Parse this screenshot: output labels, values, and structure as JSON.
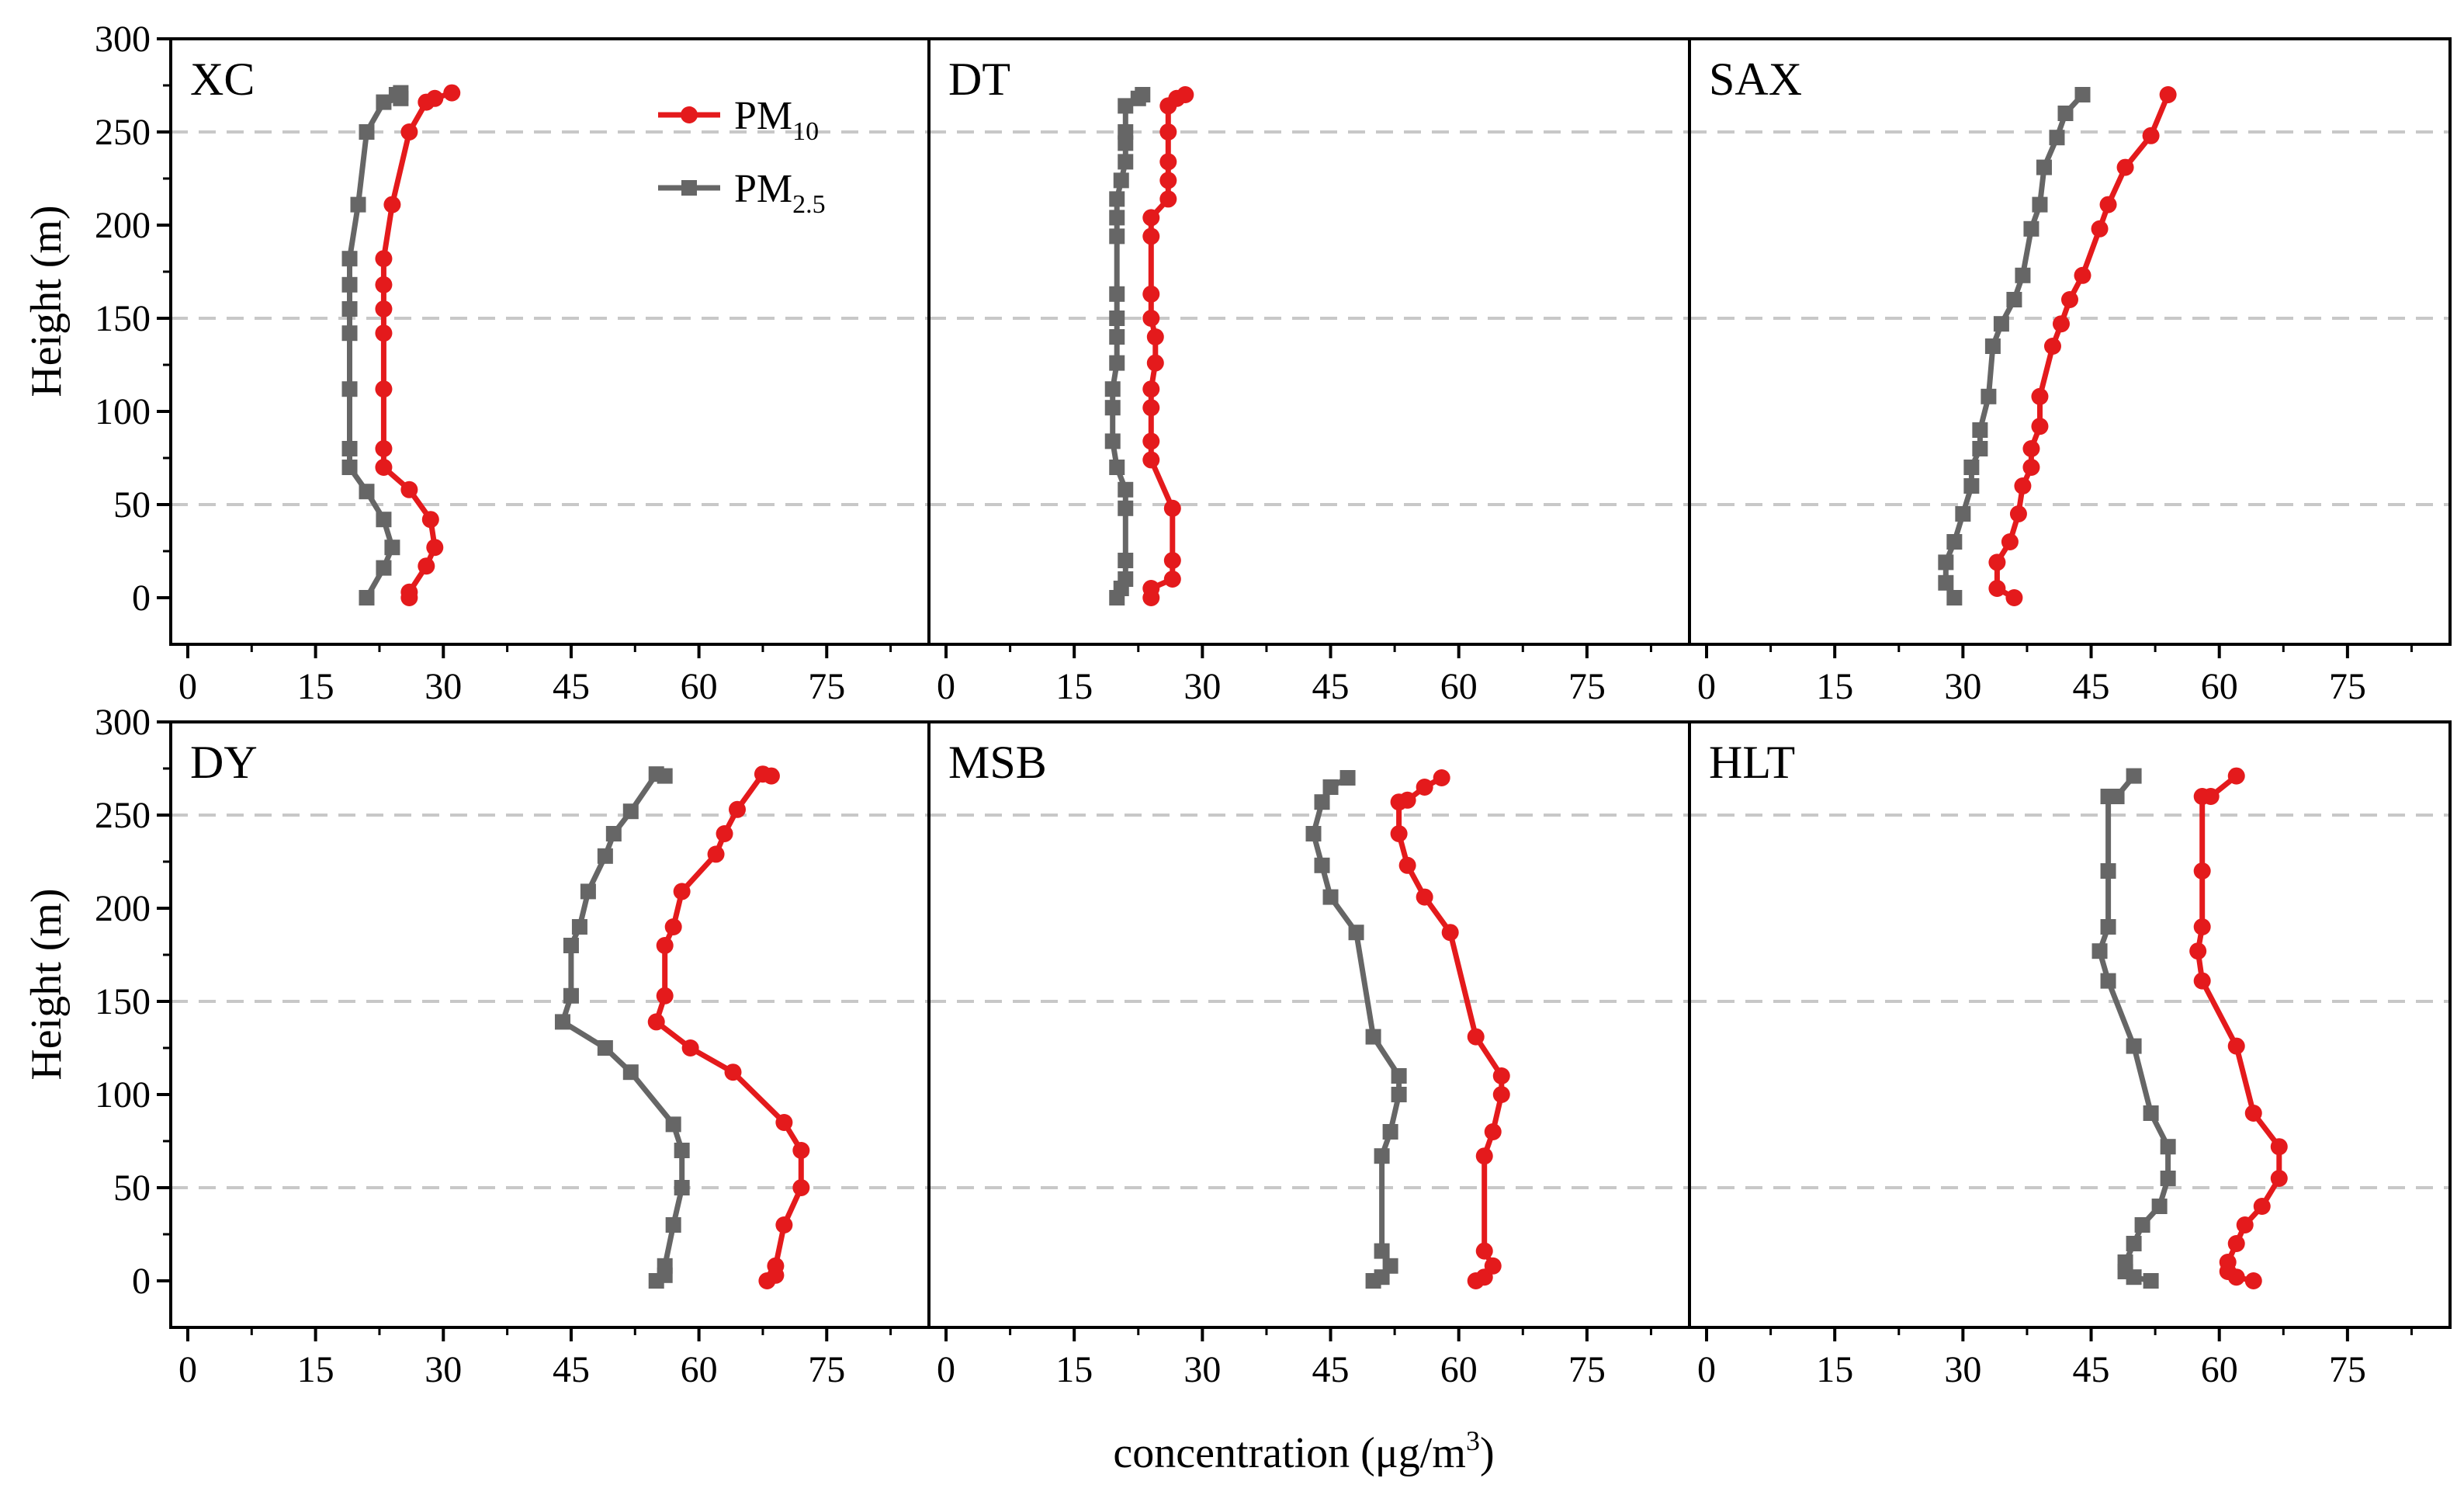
{
  "chart_data": {
    "type": "line",
    "layout": "2x3 small multiples, shared y axis per row",
    "xlabel": "concentration (μg/m³)",
    "xlabel_base": "concentration (μg/m",
    "xlabel_sup": "3",
    "xlabel_tail": ")",
    "ylabel": "Height (m)",
    "xlim": [
      -2,
      87
    ],
    "ylim": [
      -25,
      300
    ],
    "xticks": [
      "0",
      "15",
      "30",
      "45",
      "60",
      "75"
    ],
    "yticks": [
      "0",
      "50",
      "100",
      "150",
      "200",
      "250",
      "300"
    ],
    "horizontal_reference_lines": [
      50,
      150,
      250
    ],
    "grid": "dashed gray horizontal lines at 50, 150, 250",
    "legend": {
      "placement": "top inside first panel",
      "entries": [
        {
          "label": "PM10",
          "base": "PM",
          "sub": "10",
          "color": "#e41a1c",
          "marker": "circle"
        },
        {
          "label": "PM2.5",
          "base": "PM",
          "sub": "2.5",
          "color": "#666666",
          "marker": "square"
        }
      ]
    },
    "panels": [
      {
        "name": "XC",
        "series": [
          {
            "name": "PM10",
            "color": "#e41a1c",
            "marker": "circle",
            "x": [
              26,
              26,
              28,
              29,
              28.5,
              26,
              23,
              23,
              23,
              23,
              23,
              23,
              23,
              24,
              26,
              28,
              29,
              31
            ],
            "y": [
              0,
              3,
              17,
              27,
              42,
              58,
              70,
              80,
              112,
              142,
              155,
              168,
              182,
              211,
              250,
              266,
              268,
              271
            ]
          },
          {
            "name": "PM2.5",
            "color": "#666666",
            "marker": "square",
            "x": [
              21,
              23,
              24,
              23,
              21,
              19,
              19,
              19,
              19,
              19,
              19,
              19,
              20,
              21,
              23,
              25,
              24.5,
              25
            ],
            "y": [
              0,
              16,
              27,
              42,
              57,
              70,
              80,
              112,
              142,
              155,
              168,
              182,
              211,
              250,
              266,
              268,
              270,
              271
            ]
          }
        ]
      },
      {
        "name": "DT",
        "series": [
          {
            "name": "PM10",
            "color": "#e41a1c",
            "marker": "circle",
            "x": [
              24,
              24,
              26.5,
              26.5,
              26.5,
              24,
              24,
              24,
              24,
              24.5,
              24.5,
              24,
              24,
              24,
              24,
              26,
              26,
              26,
              26,
              26,
              27,
              28
            ],
            "y": [
              0,
              5,
              10,
              20,
              48,
              74,
              84,
              102,
              112,
              126,
              140,
              150,
              163,
              194,
              204,
              214,
              224,
              234,
              250,
              264,
              268,
              270
            ]
          },
          {
            "name": "PM2.5",
            "color": "#666666",
            "marker": "square",
            "x": [
              20,
              20.5,
              21,
              21,
              21,
              21,
              20,
              19.5,
              19.5,
              19.5,
              20,
              20,
              20,
              20,
              20,
              20,
              20,
              20.5,
              21,
              21,
              21,
              21,
              22.5,
              23
            ],
            "y": [
              0,
              5,
              10,
              20,
              48,
              58,
              70,
              84,
              102,
              112,
              126,
              140,
              150,
              163,
              194,
              204,
              214,
              224,
              234,
              244,
              250,
              264,
              268,
              270
            ]
          }
        ]
      },
      {
        "name": "SAX",
        "series": [
          {
            "name": "PM10",
            "color": "#e41a1c",
            "marker": "circle",
            "x": [
              36,
              34,
              34,
              35.5,
              36.5,
              37,
              38,
              38,
              39,
              39,
              40.5,
              41.5,
              42.5,
              44,
              46,
              47,
              49,
              52,
              54
            ],
            "y": [
              0,
              5,
              19,
              30,
              45,
              60,
              70,
              80,
              92,
              108,
              135,
              147,
              160,
              173,
              198,
              211,
              231,
              248,
              270
            ]
          },
          {
            "name": "PM2.5",
            "color": "#666666",
            "marker": "square",
            "x": [
              29,
              28,
              28,
              29,
              30,
              31,
              31,
              32,
              32,
              33,
              33.5,
              34.5,
              36,
              37,
              38,
              39,
              39.5,
              41,
              42,
              44
            ],
            "y": [
              0,
              8,
              19,
              30,
              45,
              60,
              70,
              80,
              90,
              108,
              135,
              147,
              160,
              173,
              198,
              211,
              231,
              247,
              260,
              270
            ]
          }
        ]
      },
      {
        "name": "DY",
        "series": [
          {
            "name": "PM10",
            "color": "#e41a1c",
            "marker": "circle",
            "x": [
              68,
              69,
              69,
              70,
              72,
              72,
              70,
              64,
              59,
              55,
              56,
              56,
              57,
              58,
              62,
              63,
              64.5,
              67.5,
              68.5
            ],
            "y": [
              0,
              3,
              8,
              30,
              50,
              70,
              85,
              112,
              125,
              139,
              153,
              180,
              190,
              209,
              229,
              240,
              253,
              272,
              271
            ]
          },
          {
            "name": "PM2.5",
            "color": "#666666",
            "marker": "square",
            "x": [
              55,
              56,
              56,
              57,
              58,
              58,
              57,
              52,
              49,
              44,
              45,
              45,
              46,
              47,
              49,
              50,
              52,
              55,
              56
            ],
            "y": [
              0,
              3,
              8,
              30,
              50,
              70,
              84,
              112,
              125,
              139,
              153,
              180,
              190,
              209,
              228,
              240,
              252,
              272,
              271
            ]
          }
        ]
      },
      {
        "name": "MSB",
        "series": [
          {
            "name": "PM10",
            "color": "#e41a1c",
            "marker": "circle",
            "x": [
              62,
              63,
              64,
              63,
              63,
              64,
              65,
              65,
              62,
              59,
              56,
              54,
              53,
              53,
              54,
              56,
              58
            ],
            "y": [
              0,
              2,
              8,
              16,
              67,
              80,
              100,
              110,
              131,
              187,
              206,
              223,
              240,
              257,
              258,
              265,
              270
            ]
          },
          {
            "name": "PM2.5",
            "color": "#666666",
            "marker": "square",
            "x": [
              50,
              51,
              52,
              51,
              51,
              52,
              53,
              53,
              50,
              48,
              45,
              44,
              43,
              44,
              45,
              47
            ],
            "y": [
              0,
              2,
              8,
              16,
              67,
              80,
              100,
              110,
              131,
              187,
              206,
              223,
              240,
              257,
              265,
              270
            ]
          }
        ]
      },
      {
        "name": "HLT",
        "series": [
          {
            "name": "PM10",
            "color": "#e41a1c",
            "marker": "circle",
            "x": [
              64,
              62,
              61,
              61,
              62,
              63,
              65,
              67,
              67,
              64,
              62,
              58,
              57.5,
              58,
              58,
              58,
              59,
              62
            ],
            "y": [
              0,
              2,
              5,
              10,
              20,
              30,
              40,
              55,
              72,
              90,
              126,
              161,
              177,
              190,
              220,
              260,
              260,
              271
            ]
          },
          {
            "name": "PM2.5",
            "color": "#666666",
            "marker": "square",
            "x": [
              52,
              50,
              49,
              49,
              50,
              51,
              53,
              54,
              54,
              52,
              50,
              47,
              46,
              47,
              47,
              47,
              48,
              50
            ],
            "y": [
              0,
              2,
              5,
              10,
              20,
              30,
              40,
              55,
              72,
              90,
              126,
              161,
              177,
              190,
              220,
              260,
              260,
              271
            ]
          }
        ]
      }
    ]
  }
}
